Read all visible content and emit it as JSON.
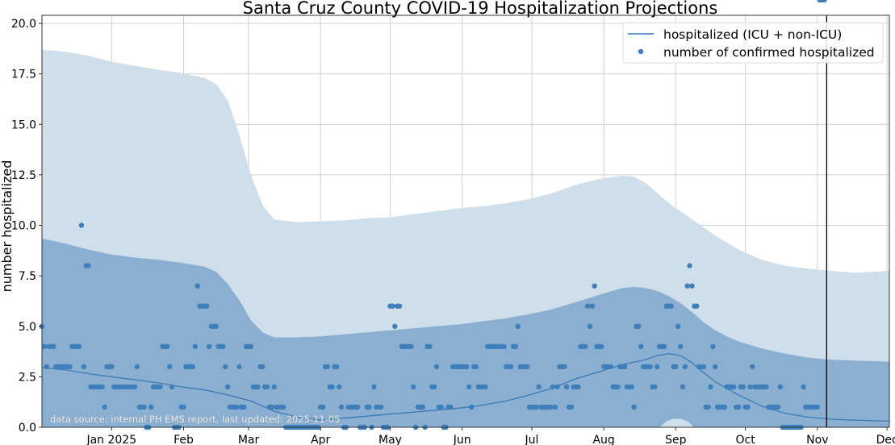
{
  "chart_data": {
    "type": "line",
    "title": "Santa Cruz County COVID-19 Hospitalization Projections",
    "xlabel": "",
    "ylabel": "number hospitalized",
    "ylim": [
      0,
      20.4
    ],
    "xlim_days": [
      0,
      365
    ],
    "x_origin": "2024-12-02",
    "grid": true,
    "legend_position": "top-right",
    "yticks": [
      0.0,
      2.5,
      5.0,
      7.5,
      10.0,
      12.5,
      15.0,
      17.5,
      20.0
    ],
    "ytick_labels": [
      "0.0",
      "2.5",
      "5.0",
      "7.5",
      "10.0",
      "12.5",
      "15.0",
      "17.5",
      "20.0"
    ],
    "xticks": [
      {
        "day": 30,
        "label": "Jan 2025"
      },
      {
        "day": 61,
        "label": "Feb"
      },
      {
        "day": 89,
        "label": "Mar"
      },
      {
        "day": 120,
        "label": "Apr"
      },
      {
        "day": 150,
        "label": "May"
      },
      {
        "day": 181,
        "label": "Jun"
      },
      {
        "day": 211,
        "label": "Jul"
      },
      {
        "day": 242,
        "label": "Aug"
      },
      {
        "day": 273,
        "label": "Sep"
      },
      {
        "day": 303,
        "label": "Oct"
      },
      {
        "day": 334,
        "label": "Nov"
      },
      {
        "day": 364,
        "label": "Dec"
      }
    ],
    "vline": {
      "day": 338,
      "label": "last updated"
    },
    "legend": [
      {
        "name": "hospitalized (ICU + non-ICU)",
        "type": "line"
      },
      {
        "name": "number of confirmed hospitalized",
        "type": "marker"
      }
    ],
    "annotation": "data source: internal PH EMS report, last updated: 2025-11-05",
    "colors": {
      "line": "#3a7ab8",
      "points": "#3f7fba",
      "band_outer": "#cfdeeb",
      "band_inner": "#8aafd1",
      "vline": "#000000"
    },
    "projection_line": {
      "days": [
        0,
        10,
        20,
        30,
        40,
        50,
        60,
        70,
        80,
        90,
        95,
        100,
        110,
        120,
        130,
        140,
        150,
        160,
        170,
        180,
        190,
        200,
        210,
        220,
        230,
        240,
        250,
        260,
        265,
        270,
        275,
        280,
        285,
        290,
        300,
        310,
        320,
        330,
        340,
        350,
        365
      ],
      "values": [
        2.95,
        2.85,
        2.65,
        2.5,
        2.35,
        2.2,
        2.0,
        1.85,
        1.6,
        1.3,
        1.05,
        0.8,
        0.5,
        0.35,
        0.45,
        0.55,
        0.65,
        0.75,
        0.85,
        0.95,
        1.1,
        1.3,
        1.6,
        1.95,
        2.4,
        2.75,
        3.1,
        3.35,
        3.55,
        3.65,
        3.55,
        3.2,
        2.7,
        2.25,
        1.6,
        1.05,
        0.7,
        0.5,
        0.4,
        0.35,
        0.3
      ]
    },
    "band_outer": {
      "days": [
        0,
        10,
        20,
        30,
        40,
        50,
        60,
        70,
        75,
        80,
        85,
        90,
        95,
        100,
        110,
        120,
        130,
        140,
        150,
        160,
        170,
        180,
        190,
        200,
        210,
        220,
        230,
        240,
        250,
        255,
        260,
        265,
        270,
        280,
        290,
        300,
        310,
        320,
        330,
        340,
        350,
        365
      ],
      "upper": [
        18.7,
        18.6,
        18.4,
        18.1,
        17.9,
        17.7,
        17.55,
        17.3,
        17.0,
        16.2,
        14.5,
        12.5,
        11.0,
        10.3,
        10.15,
        10.2,
        10.25,
        10.35,
        10.4,
        10.55,
        10.7,
        10.85,
        10.95,
        11.1,
        11.3,
        11.6,
        12.0,
        12.3,
        12.45,
        12.4,
        12.1,
        11.6,
        11.1,
        10.3,
        9.5,
        8.8,
        8.3,
        8.0,
        7.85,
        7.75,
        7.65,
        7.75
      ],
      "lower": [
        0,
        0,
        0,
        0,
        0,
        0,
        0,
        0,
        0,
        0,
        0,
        0,
        0,
        0,
        0,
        0,
        0,
        0,
        0,
        0,
        0,
        0,
        0,
        0,
        0,
        0,
        0,
        0,
        0,
        0,
        0,
        0,
        0,
        0,
        0,
        0,
        0,
        0,
        0,
        0,
        0,
        0
      ]
    },
    "band_inner": {
      "days": [
        0,
        10,
        20,
        30,
        40,
        50,
        60,
        70,
        75,
        80,
        85,
        90,
        95,
        100,
        110,
        120,
        130,
        140,
        150,
        160,
        170,
        180,
        190,
        200,
        210,
        220,
        230,
        240,
        250,
        255,
        260,
        265,
        270,
        275,
        280,
        285,
        290,
        295,
        300,
        310,
        320,
        330,
        340,
        350,
        365
      ],
      "upper": [
        9.35,
        9.1,
        8.8,
        8.55,
        8.4,
        8.3,
        8.15,
        7.95,
        7.7,
        7.1,
        6.3,
        5.3,
        4.7,
        4.45,
        4.45,
        4.5,
        4.6,
        4.7,
        4.8,
        4.9,
        5.0,
        5.1,
        5.25,
        5.4,
        5.6,
        5.85,
        6.2,
        6.55,
        6.9,
        6.95,
        6.9,
        6.75,
        6.5,
        6.15,
        5.7,
        5.2,
        4.8,
        4.5,
        4.25,
        3.9,
        3.65,
        3.45,
        3.35,
        3.3,
        3.25
      ],
      "lower": [
        0,
        0,
        0,
        0,
        0,
        0,
        0,
        0,
        0,
        0,
        0,
        0,
        0,
        0,
        0,
        0,
        0,
        0,
        0,
        0,
        0,
        0,
        0,
        0,
        0,
        0,
        0,
        0,
        0,
        0,
        0,
        0,
        0,
        0,
        0,
        0,
        0,
        0,
        0,
        0,
        0,
        0,
        0,
        0,
        0
      ]
    },
    "band_inner_hole": {
      "days": [
        266,
        269,
        272,
        275,
        278,
        281
      ],
      "upper": [
        0,
        0.3,
        0.42,
        0.42,
        0.3,
        0
      ]
    },
    "observed": {
      "days": [
        0,
        1,
        2,
        3,
        4,
        5,
        6,
        7,
        8,
        9,
        10,
        11,
        12,
        13,
        14,
        15,
        16,
        17,
        18,
        19,
        20,
        21,
        22,
        23,
        24,
        25,
        26,
        27,
        28,
        29,
        30,
        31,
        32,
        33,
        34,
        35,
        36,
        37,
        38,
        39,
        40,
        41,
        42,
        43,
        44,
        45,
        46,
        47,
        48,
        49,
        50,
        51,
        52,
        53,
        54,
        55,
        56,
        57,
        58,
        59,
        60,
        61,
        62,
        63,
        64,
        65,
        66,
        67,
        68,
        69,
        70,
        71,
        72,
        73,
        74,
        75,
        76,
        77,
        78,
        79,
        80,
        81,
        82,
        83,
        84,
        85,
        86,
        87,
        88,
        89,
        90,
        91,
        92,
        93,
        94,
        95,
        96,
        97,
        98,
        99,
        100,
        101,
        102,
        103,
        104,
        105,
        106,
        107,
        108,
        109,
        110,
        111,
        112,
        113,
        114,
        115,
        116,
        117,
        118,
        119,
        120,
        121,
        122,
        123,
        124,
        125,
        126,
        127,
        128,
        129,
        130,
        131,
        132,
        133,
        134,
        135,
        136,
        137,
        138,
        139,
        140,
        141,
        142,
        143,
        144,
        145,
        146,
        147,
        148,
        149,
        150,
        151,
        152,
        153,
        154,
        155,
        156,
        157,
        158,
        159,
        160,
        161,
        162,
        163,
        164,
        165,
        166,
        167,
        168,
        169,
        170,
        171,
        172,
        173,
        174,
        175,
        176,
        177,
        178,
        179,
        180,
        181,
        182,
        183,
        184,
        185,
        186,
        187,
        188,
        189,
        190,
        191,
        192,
        193,
        194,
        195,
        196,
        197,
        198,
        199,
        200,
        201,
        202,
        203,
        204,
        205,
        206,
        207,
        208,
        209,
        210,
        211,
        212,
        213,
        214,
        215,
        216,
        217,
        218,
        219,
        220,
        221,
        222,
        223,
        224,
        225,
        226,
        227,
        228,
        229,
        230,
        231,
        232,
        233,
        234,
        235,
        236,
        237,
        238,
        239,
        240,
        241,
        242,
        243,
        244,
        245,
        246,
        247,
        248,
        249,
        250,
        251,
        252,
        253,
        254,
        255,
        256,
        257,
        258,
        259,
        260,
        261,
        262,
        263,
        264,
        265,
        266,
        267,
        268,
        269,
        270,
        271,
        272,
        273,
        274,
        275,
        276,
        277,
        278,
        279,
        280,
        281,
        282,
        283,
        284,
        285,
        286,
        287,
        288,
        289,
        290,
        291,
        292,
        293,
        294,
        295,
        296,
        297,
        298,
        299,
        300,
        301,
        302,
        303,
        304,
        305,
        306,
        307,
        308,
        309,
        310,
        311,
        312,
        313,
        314,
        315,
        316,
        317,
        318,
        319,
        320,
        321,
        322,
        323,
        324,
        325,
        326,
        327,
        328,
        329,
        330,
        331,
        332,
        333,
        334,
        335,
        336,
        337
      ],
      "values": [
        5,
        4,
        3,
        4,
        4,
        4,
        3,
        3,
        3,
        3,
        3,
        3,
        3,
        4,
        4,
        4,
        4,
        10,
        3,
        8,
        8,
        2,
        2,
        2,
        2,
        2,
        2,
        1,
        3,
        3,
        3,
        2,
        2,
        2,
        2,
        2,
        2,
        2,
        2,
        2,
        2,
        3,
        1,
        1,
        1,
        0,
        0,
        1,
        2,
        2,
        2,
        2,
        4,
        4,
        4,
        3,
        2,
        0,
        0,
        0,
        1,
        1,
        3,
        3,
        3,
        3,
        4,
        7,
        6,
        6,
        6,
        6,
        4,
        5,
        5,
        5,
        4,
        4,
        4,
        3,
        2,
        1,
        1,
        1,
        1,
        3,
        1,
        1,
        4,
        4,
        4,
        2,
        2,
        2,
        3,
        3,
        2,
        2,
        1,
        1,
        2,
        1,
        1,
        1,
        1,
        0,
        0,
        0,
        0,
        0,
        0,
        0,
        0,
        0,
        0,
        0,
        0,
        0,
        0,
        0,
        1,
        1,
        3,
        3,
        2,
        2,
        3,
        3,
        2,
        1,
        0,
        0,
        1,
        1,
        1,
        1,
        1,
        0,
        0,
        0,
        1,
        1,
        0,
        2,
        1,
        1,
        1,
        0,
        0,
        0,
        6,
        6,
        5,
        6,
        6,
        4,
        4,
        4,
        4,
        4,
        2,
        0,
        1,
        1,
        1,
        0,
        4,
        4,
        2,
        2,
        3,
        1,
        1,
        0,
        0,
        1,
        1,
        3,
        3,
        3,
        3,
        3,
        3,
        3,
        2,
        1,
        3,
        3,
        2,
        2,
        2,
        2,
        4,
        4,
        4,
        4,
        4,
        4,
        4,
        4,
        3,
        3,
        3,
        4,
        4,
        5,
        3,
        3,
        3,
        3,
        1,
        1,
        1,
        1,
        2,
        1,
        1,
        1,
        1,
        1,
        2,
        1,
        2,
        3,
        3,
        3,
        2,
        1,
        1,
        2,
        2,
        2,
        4,
        4,
        4,
        6,
        5,
        6,
        7,
        4,
        4,
        4,
        3,
        3,
        3,
        3,
        2,
        2,
        2,
        3,
        3,
        3,
        2,
        2,
        2,
        1,
        5,
        5,
        4,
        3,
        3,
        3,
        3,
        2,
        2,
        3,
        4,
        4,
        4,
        6,
        6,
        6,
        3,
        3,
        5,
        4,
        2,
        3,
        7,
        8,
        7,
        6,
        6,
        3,
        3,
        3,
        1,
        1,
        2,
        4,
        3,
        1,
        1,
        1,
        1,
        2,
        2,
        2,
        2,
        1,
        1,
        2,
        2,
        1,
        1,
        2,
        3,
        2,
        2,
        2,
        2,
        2,
        2,
        1,
        1,
        1,
        1,
        1,
        2,
        0,
        0,
        0,
        0,
        0,
        0,
        0,
        0,
        0,
        2,
        1,
        1,
        1,
        1,
        1,
        1
      ]
    }
  }
}
